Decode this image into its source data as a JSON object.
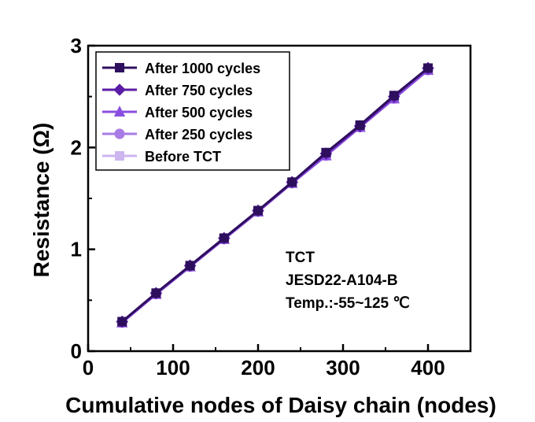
{
  "chart_data": {
    "type": "line",
    "xlabel": "Cumulative nodes of Daisy chain (nodes)",
    "ylabel": "Resistance (Ω)",
    "xlim": [
      0,
      450
    ],
    "ylim": [
      0,
      3
    ],
    "xticks": [
      0,
      100,
      200,
      300,
      400
    ],
    "yticks": [
      0,
      1,
      2,
      3
    ],
    "legend_position": "top-left",
    "x": [
      40,
      80,
      120,
      160,
      200,
      240,
      280,
      320,
      360,
      400
    ],
    "series": [
      {
        "name": "After 1000 cycles",
        "marker": "square",
        "color": "#2e0f5e",
        "values": [
          0.29,
          0.57,
          0.84,
          1.11,
          1.38,
          1.66,
          1.95,
          2.22,
          2.51,
          2.78
        ]
      },
      {
        "name": "After 750 cycles",
        "marker": "diamond",
        "color": "#5b1ca6",
        "values": [
          0.29,
          0.57,
          0.84,
          1.11,
          1.38,
          1.66,
          1.94,
          2.21,
          2.5,
          2.78
        ]
      },
      {
        "name": "After 500 cycles",
        "marker": "triangle",
        "color": "#8a4fe0",
        "values": [
          0.28,
          0.56,
          0.83,
          1.1,
          1.37,
          1.65,
          1.92,
          2.2,
          2.48,
          2.76
        ]
      },
      {
        "name": "After 250 cycles",
        "marker": "circle",
        "color": "#a97be6",
        "values": [
          0.28,
          0.56,
          0.83,
          1.1,
          1.37,
          1.65,
          1.92,
          2.2,
          2.48,
          2.76
        ]
      },
      {
        "name": "Before TCT",
        "marker": "square",
        "color": "#cdb5f0",
        "values": [
          0.28,
          0.56,
          0.83,
          1.1,
          1.37,
          1.65,
          1.92,
          2.2,
          2.48,
          2.76
        ]
      }
    ],
    "annotations": [
      "TCT",
      "JESD22-A104-B",
      "Temp.:-55~125 ℃"
    ]
  }
}
